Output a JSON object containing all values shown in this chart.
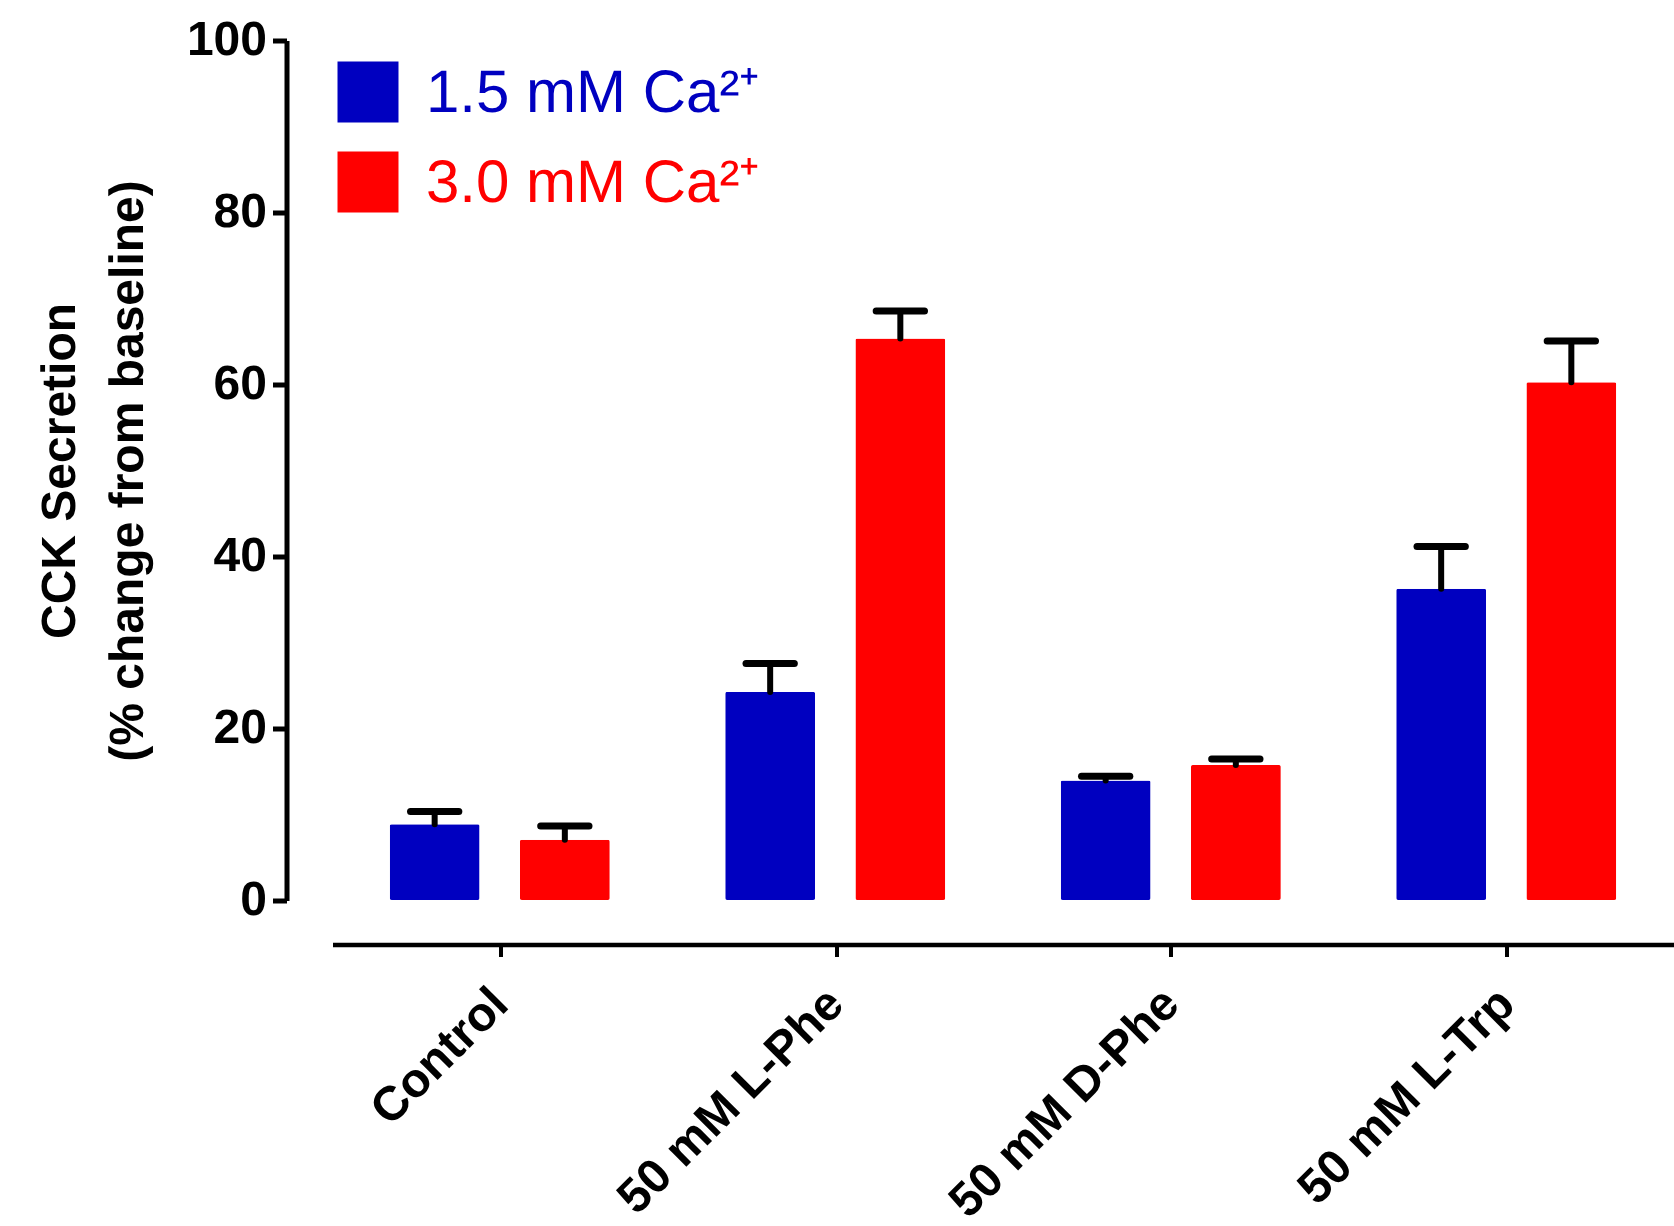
{
  "chart_data": {
    "type": "bar",
    "ylabel": "CCK Secretion\n(% change from baseline)",
    "categories": [
      "Control",
      "50 mM L-Phe",
      "50 mM D-Phe",
      "50 mM L-Trp"
    ],
    "series": [
      {
        "name": "1.5 mM Ca²⁺",
        "color": "#0000c0",
        "values": [
          8.8,
          24.2,
          13.9,
          36.2
        ],
        "errors": [
          [
            8.8,
            10.3
          ],
          [
            24.2,
            27.5
          ],
          [
            13.9,
            14.4
          ],
          [
            36.2,
            41.1
          ]
        ]
      },
      {
        "name": "3.0 mM Ca²⁺",
        "color": "#ff0000",
        "values": [
          7.0,
          65.3,
          15.7,
          60.2
        ],
        "errors": [
          [
            7.0,
            8.6
          ],
          [
            65.3,
            68.5
          ],
          [
            15.7,
            16.4
          ],
          [
            60.2,
            65.0
          ]
        ]
      }
    ],
    "ylim": [
      0,
      100
    ],
    "yticks": [
      0,
      20,
      40,
      60,
      80,
      100
    ],
    "grid": false,
    "legend": "top left"
  }
}
